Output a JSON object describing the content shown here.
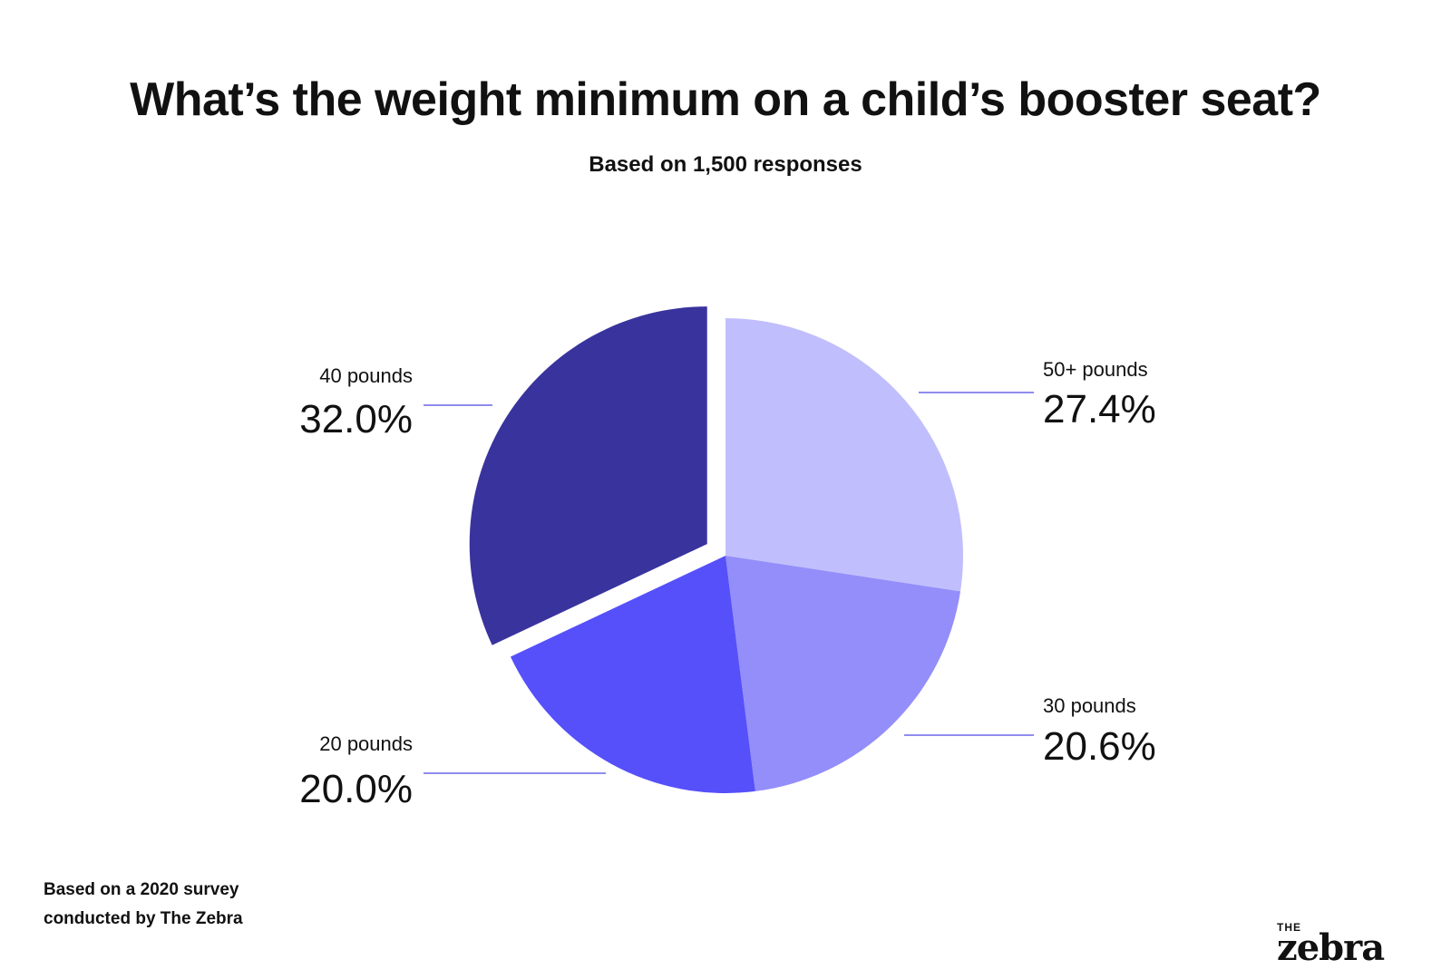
{
  "chart_data": {
    "type": "pie",
    "title": "What’s the weight minimum on a child’s booster seat?",
    "subtitle": "Based on 1,500 responses",
    "slices": [
      {
        "label": "50+ pounds",
        "value": 27.4,
        "display": "27.4%",
        "color": "#c1befd"
      },
      {
        "label": "30 pounds",
        "value": 20.6,
        "display": "20.6%",
        "color": "#938ef9"
      },
      {
        "label": "20 pounds",
        "value": 20.0,
        "display": "20.0%",
        "color": "#5650fa"
      },
      {
        "label": "40 pounds",
        "value": 32.0,
        "display": "32.0%",
        "color": "#39339e",
        "exploded": true
      }
    ],
    "leader_color": "#6b66e8"
  },
  "footnote": {
    "line1": "Based on a 2020 survey",
    "line2": "conducted by The Zebra"
  },
  "logo": {
    "the": "THE",
    "word": "zebra"
  }
}
